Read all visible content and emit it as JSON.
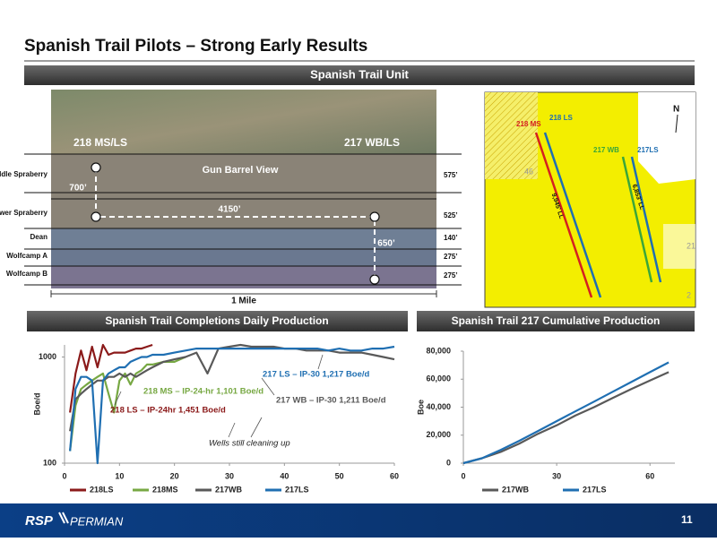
{
  "header": {
    "title": "Spanish Trail Pilots – Strong Early Results",
    "section": "Spanish Trail Unit"
  },
  "diagram": {
    "left_well": "218 MS/LS",
    "right_well": "217 WB/LS",
    "view": "Gun Barrel View",
    "layers": [
      "Middle Spraberry",
      "Lower Spraberry",
      "Dean",
      "Wolfcamp A",
      "Wolfcamp B"
    ],
    "thicknesses": [
      "575’",
      "525’",
      "140’",
      "275’",
      "275’"
    ],
    "spacing_vertical": "700’",
    "spacing_horizontal": "4150’",
    "spacing_right": "650’",
    "scale": "1 Mile"
  },
  "map": {
    "labels": [
      "218 MS",
      "218 LS",
      "217 WB",
      "217LS"
    ],
    "lateral_left": "9,945’ LL",
    "lateral_right": "6,853’ LL",
    "north": "N",
    "sections": [
      "46",
      "21",
      "2"
    ]
  },
  "panels": [
    "Spanish Trail Completions Daily Production",
    "Spanish Trail 217 Cumulative Production"
  ],
  "chart_data": [
    {
      "type": "line",
      "log_y": true,
      "grid": false,
      "ylabel": "Boe/d",
      "x": [
        1,
        2,
        3,
        4,
        5,
        6,
        7,
        8,
        9,
        10,
        11,
        12,
        13,
        14,
        15,
        16,
        18,
        20,
        22,
        24,
        26,
        28,
        30,
        32,
        34,
        36,
        38,
        40,
        42,
        44,
        46,
        48,
        50,
        52,
        54,
        56,
        58,
        60
      ],
      "xlim": [
        0,
        60
      ],
      "xticks": [
        0,
        10,
        20,
        30,
        40,
        50,
        60
      ],
      "ylim": [
        100,
        1300
      ],
      "yticks": [
        100,
        1000
      ],
      "series": [
        {
          "name": "218LS",
          "color": "#8b1a1a",
          "values": [
            300,
            700,
            1150,
            750,
            1250,
            800,
            1300,
            1050,
            1100,
            1100,
            1100,
            1150,
            1200,
            1200,
            1250,
            1300,
            null,
            null,
            null,
            null,
            null,
            null,
            null,
            null,
            null,
            null,
            null,
            null,
            null,
            null,
            null,
            null,
            null,
            null,
            null,
            null,
            null,
            null
          ]
        },
        {
          "name": "218MS",
          "color": "#77a843",
          "values": [
            130,
            350,
            500,
            550,
            600,
            650,
            700,
            450,
            300,
            600,
            700,
            550,
            700,
            750,
            850,
            850,
            900,
            900,
            1000,
            null,
            null,
            null,
            null,
            null,
            null,
            null,
            null,
            null,
            null,
            null,
            null,
            null,
            null,
            null,
            null,
            null,
            null,
            null
          ]
        },
        {
          "name": "217WB",
          "color": "#595959",
          "values": [
            200,
            400,
            450,
            500,
            550,
            600,
            600,
            650,
            650,
            700,
            650,
            700,
            650,
            700,
            750,
            800,
            900,
            950,
            1000,
            1100,
            700,
            1200,
            1250,
            1300,
            1250,
            1250,
            1250,
            1200,
            1200,
            1150,
            1150,
            1150,
            1100,
            1100,
            1100,
            1050,
            1000,
            950
          ]
        },
        {
          "name": "217LS",
          "color": "#1f6fb2",
          "values": [
            130,
            500,
            650,
            650,
            600,
            100,
            600,
            700,
            750,
            800,
            800,
            900,
            950,
            1000,
            1000,
            1050,
            1050,
            1100,
            1150,
            1200,
            1200,
            1200,
            1200,
            1200,
            1200,
            1200,
            1200,
            1200,
            1200,
            1200,
            1200,
            1150,
            1200,
            1150,
            1150,
            1200,
            1200,
            1250
          ]
        }
      ],
      "annotations": [
        {
          "text": "217 LS – IP-30 1,217 Boe/d",
          "color": "#1f6fb2"
        },
        {
          "text": "218 MS – IP-24-hr 1,101 Boe/d",
          "color": "#77a843"
        },
        {
          "text": "217 WB – IP-30 1,211 Boe/d",
          "color": "#595959"
        },
        {
          "text": "218 LS – IP-24hr 1,451 Boe/d",
          "color": "#8b1a1a"
        },
        {
          "text": "Wells still cleaning up",
          "color": "#222222"
        }
      ]
    },
    {
      "type": "line",
      "log_y": false,
      "grid": false,
      "ylabel": "Boe",
      "x": [
        0,
        6,
        12,
        18,
        24,
        30,
        36,
        42,
        48,
        54,
        60,
        66
      ],
      "xlim": [
        0,
        68
      ],
      "xticks": [
        0,
        30,
        60
      ],
      "ylim": [
        0,
        80000
      ],
      "yticks": [
        0,
        {
          "value": 20000,
          "label": "20,000"
        },
        {
          "value": 40000,
          "label": "40,000"
        },
        {
          "value": 60000,
          "label": "60,000"
        },
        {
          "value": 80000,
          "label": "80,000"
        }
      ],
      "series": [
        {
          "name": "217WB",
          "color": "#595959",
          "values": [
            0,
            3500,
            8000,
            14000,
            21000,
            27000,
            34000,
            40000,
            46500,
            53000,
            59000,
            65000
          ]
        },
        {
          "name": "217LS",
          "color": "#1f6fb2",
          "values": [
            0,
            3500,
            9500,
            16000,
            23000,
            30000,
            37000,
            44000,
            51000,
            58000,
            65000,
            72000
          ]
        }
      ]
    }
  ],
  "footer": {
    "logo_left": "RSP",
    "logo_right": "PERMIAN",
    "page_number": "11"
  }
}
